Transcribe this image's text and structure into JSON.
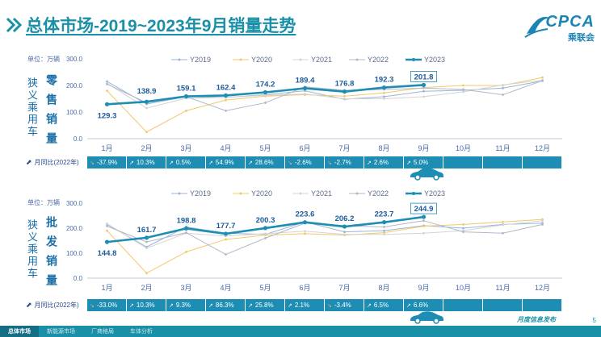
{
  "header": {
    "title": "总体市场-2019~2023年9月销量走势"
  },
  "logo": {
    "brand": "CPCA",
    "sub": "乘联会"
  },
  "colors": {
    "y2019": "#9ab4d8",
    "y2020": "#f2c86a",
    "y2021": "#d4d4d4",
    "y2022": "#b0b8c8",
    "y2023": "#1d8db3",
    "accent": "#1a8fa8"
  },
  "legend": [
    "Y2019",
    "Y2020",
    "Y2021",
    "Y2022",
    "Y2023"
  ],
  "panel1": {
    "unit": "单位：万辆",
    "category": "狭义乘用车",
    "metric": "零售销量",
    "yoy_title": "月同比(2022年)",
    "yoy": [
      "-37.9%",
      "10.3%",
      "0.5%",
      "54.9%",
      "28.6%",
      "-2.6%",
      "-2.7%",
      "2.6%",
      "5.0%",
      "",
      "",
      ""
    ],
    "yoy_dir": [
      "down",
      "up",
      "up",
      "up",
      "up",
      "down",
      "down",
      "up",
      "up",
      "",
      "",
      ""
    ]
  },
  "panel2": {
    "unit": "单位：万辆",
    "category": "狭义乘用车",
    "metric": "批发销量",
    "yoy_title": "月同比(2022年)",
    "yoy": [
      "-33.0%",
      "10.3%",
      "9.3%",
      "86.3%",
      "25.8%",
      "2.1%",
      "-3.4%",
      "6.5%",
      "6.6%",
      "",
      "",
      ""
    ],
    "yoy_dir": [
      "down",
      "up",
      "up",
      "up",
      "up",
      "up",
      "down",
      "up",
      "up",
      "",
      "",
      ""
    ]
  },
  "footer": {
    "tabs": [
      "总体市场",
      "新能源市场",
      "厂商格局",
      "车体分析"
    ],
    "right": "月度信息发布",
    "page": "5"
  },
  "chart_data": [
    {
      "type": "line",
      "title": "零售销量",
      "categories": [
        "1月",
        "2月",
        "3月",
        "4月",
        "5月",
        "6月",
        "7月",
        "8月",
        "9月",
        "10月",
        "11月",
        "12月"
      ],
      "ylim": [
        0,
        300
      ],
      "yticks": [
        "0.0",
        "100.0",
        "200.0",
        "300.0"
      ],
      "series": [
        {
          "name": "Y2019",
          "values": [
            215,
            130,
            158,
            155,
            165,
            180,
            148,
            158,
            178,
            182,
            190,
            217
          ]
        },
        {
          "name": "Y2020",
          "values": [
            180,
            25,
            105,
            145,
            160,
            165,
            160,
            172,
            192,
            200,
            200,
            230
          ]
        },
        {
          "name": "Y2021",
          "values": [
            208,
            115,
            152,
            155,
            163,
            168,
            150,
            150,
            158,
            176,
            202,
            220
          ]
        },
        {
          "name": "Y2022",
          "values": [
            205,
            135,
            158,
            105,
            135,
            195,
            182,
            185,
            190,
            185,
            165,
            218
          ]
        },
        {
          "name": "Y2023",
          "values": [
            129.3,
            138.9,
            159.1,
            162.4,
            174.2,
            189.4,
            176.8,
            192.3,
            201.8,
            null,
            null,
            null
          ]
        }
      ],
      "labels": [
        "129.3",
        "138.9",
        "159.1",
        "162.4",
        "174.2",
        "189.4",
        "176.8",
        "192.3",
        "201.8"
      ]
    },
    {
      "type": "line",
      "title": "批发销量",
      "categories": [
        "1月",
        "2月",
        "3月",
        "4月",
        "5月",
        "6月",
        "7月",
        "8月",
        "9月",
        "10月",
        "11月",
        "12月"
      ],
      "ylim": [
        0,
        300
      ],
      "yticks": [
        "0.0",
        "100.0",
        "200.0",
        "300.0"
      ],
      "series": [
        {
          "name": "Y2019",
          "values": [
            215,
            125,
            205,
            180,
            175,
            225,
            185,
            190,
            210,
            200,
            215,
            220
          ]
        },
        {
          "name": "Y2020",
          "values": [
            190,
            20,
            105,
            155,
            172,
            178,
            172,
            182,
            208,
            215,
            225,
            235
          ]
        },
        {
          "name": "Y2021",
          "values": [
            218,
            120,
            180,
            168,
            178,
            188,
            175,
            175,
            180,
            190,
            213,
            230
          ]
        },
        {
          "name": "Y2022",
          "values": [
            208,
            145,
            182,
            95,
            160,
            220,
            210,
            205,
            230,
            185,
            180,
            215
          ]
        },
        {
          "name": "Y2023",
          "values": [
            144.8,
            161.7,
            198.8,
            177.7,
            200.3,
            223.6,
            206.2,
            223.7,
            244.9,
            null,
            null,
            null
          ]
        }
      ],
      "labels": [
        "144.8",
        "161.7",
        "198.8",
        "177.7",
        "200.3",
        "223.6",
        "206.2",
        "223.7",
        "244.9"
      ]
    }
  ]
}
